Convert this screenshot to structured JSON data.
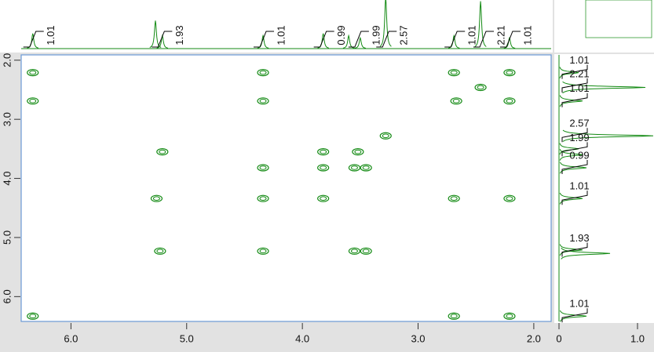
{
  "chart_data": {
    "type": "cosy",
    "color": "#138a13",
    "xlim": [
      6.43,
      1.85
    ],
    "ylim": [
      1.91,
      6.42
    ],
    "xticks": [
      {
        "value": 6,
        "label": "6.0"
      },
      {
        "value": 5,
        "label": "5.0"
      },
      {
        "value": 4,
        "label": "4.0"
      },
      {
        "value": 3,
        "label": "3.0"
      },
      {
        "value": 2,
        "label": "2.0"
      }
    ],
    "yticks": [
      {
        "value": 2,
        "label": "2.0"
      },
      {
        "value": 3,
        "label": "3.0"
      },
      {
        "value": 4,
        "label": "4.0"
      },
      {
        "value": 5,
        "label": "5.0"
      },
      {
        "value": 6,
        "label": "6.0"
      }
    ],
    "peaks_x": [
      6.33,
      4.34,
      2.69,
      2.21,
      6.33,
      4.34,
      2.67,
      2.21,
      2.46,
      5.21,
      3.82,
      3.52,
      3.28,
      4.34,
      3.82,
      3.55,
      3.45,
      5.26,
      4.34,
      3.82,
      2.69,
      2.21,
      5.23,
      4.34,
      3.55,
      3.45,
      6.33,
      2.69,
      2.21
    ],
    "peaks_y": [
      2.21,
      2.21,
      2.21,
      2.21,
      2.69,
      2.69,
      2.69,
      2.69,
      2.46,
      3.55,
      3.55,
      3.55,
      3.28,
      3.82,
      3.82,
      3.82,
      3.82,
      4.34,
      4.34,
      4.34,
      4.34,
      4.34,
      5.23,
      5.23,
      5.23,
      5.23,
      6.33,
      6.33,
      6.33
    ],
    "spectrum_ppm": [
      6.33,
      5.27,
      5.21,
      4.34,
      3.82,
      3.6,
      3.5,
      3.28,
      2.69,
      2.46,
      2.21
    ],
    "spectrum_height": [
      0.35,
      0.65,
      0.3,
      0.3,
      0.35,
      0.3,
      0.25,
      1.2,
      0.3,
      1.1,
      0.25
    ],
    "integrals": [
      1.01,
      1.93,
      1.01,
      0.99,
      1.99,
      2.57,
      1.01,
      2.21,
      1.01
    ],
    "integral_ppm": [
      6.33,
      5.22,
      4.34,
      3.82,
      3.52,
      3.28,
      2.69,
      2.44,
      2.21
    ],
    "side_ticks": [
      0,
      {
        "value": 1,
        "label": "1.0"
      }
    ],
    "side_lim": [
      0,
      1.2
    ]
  }
}
